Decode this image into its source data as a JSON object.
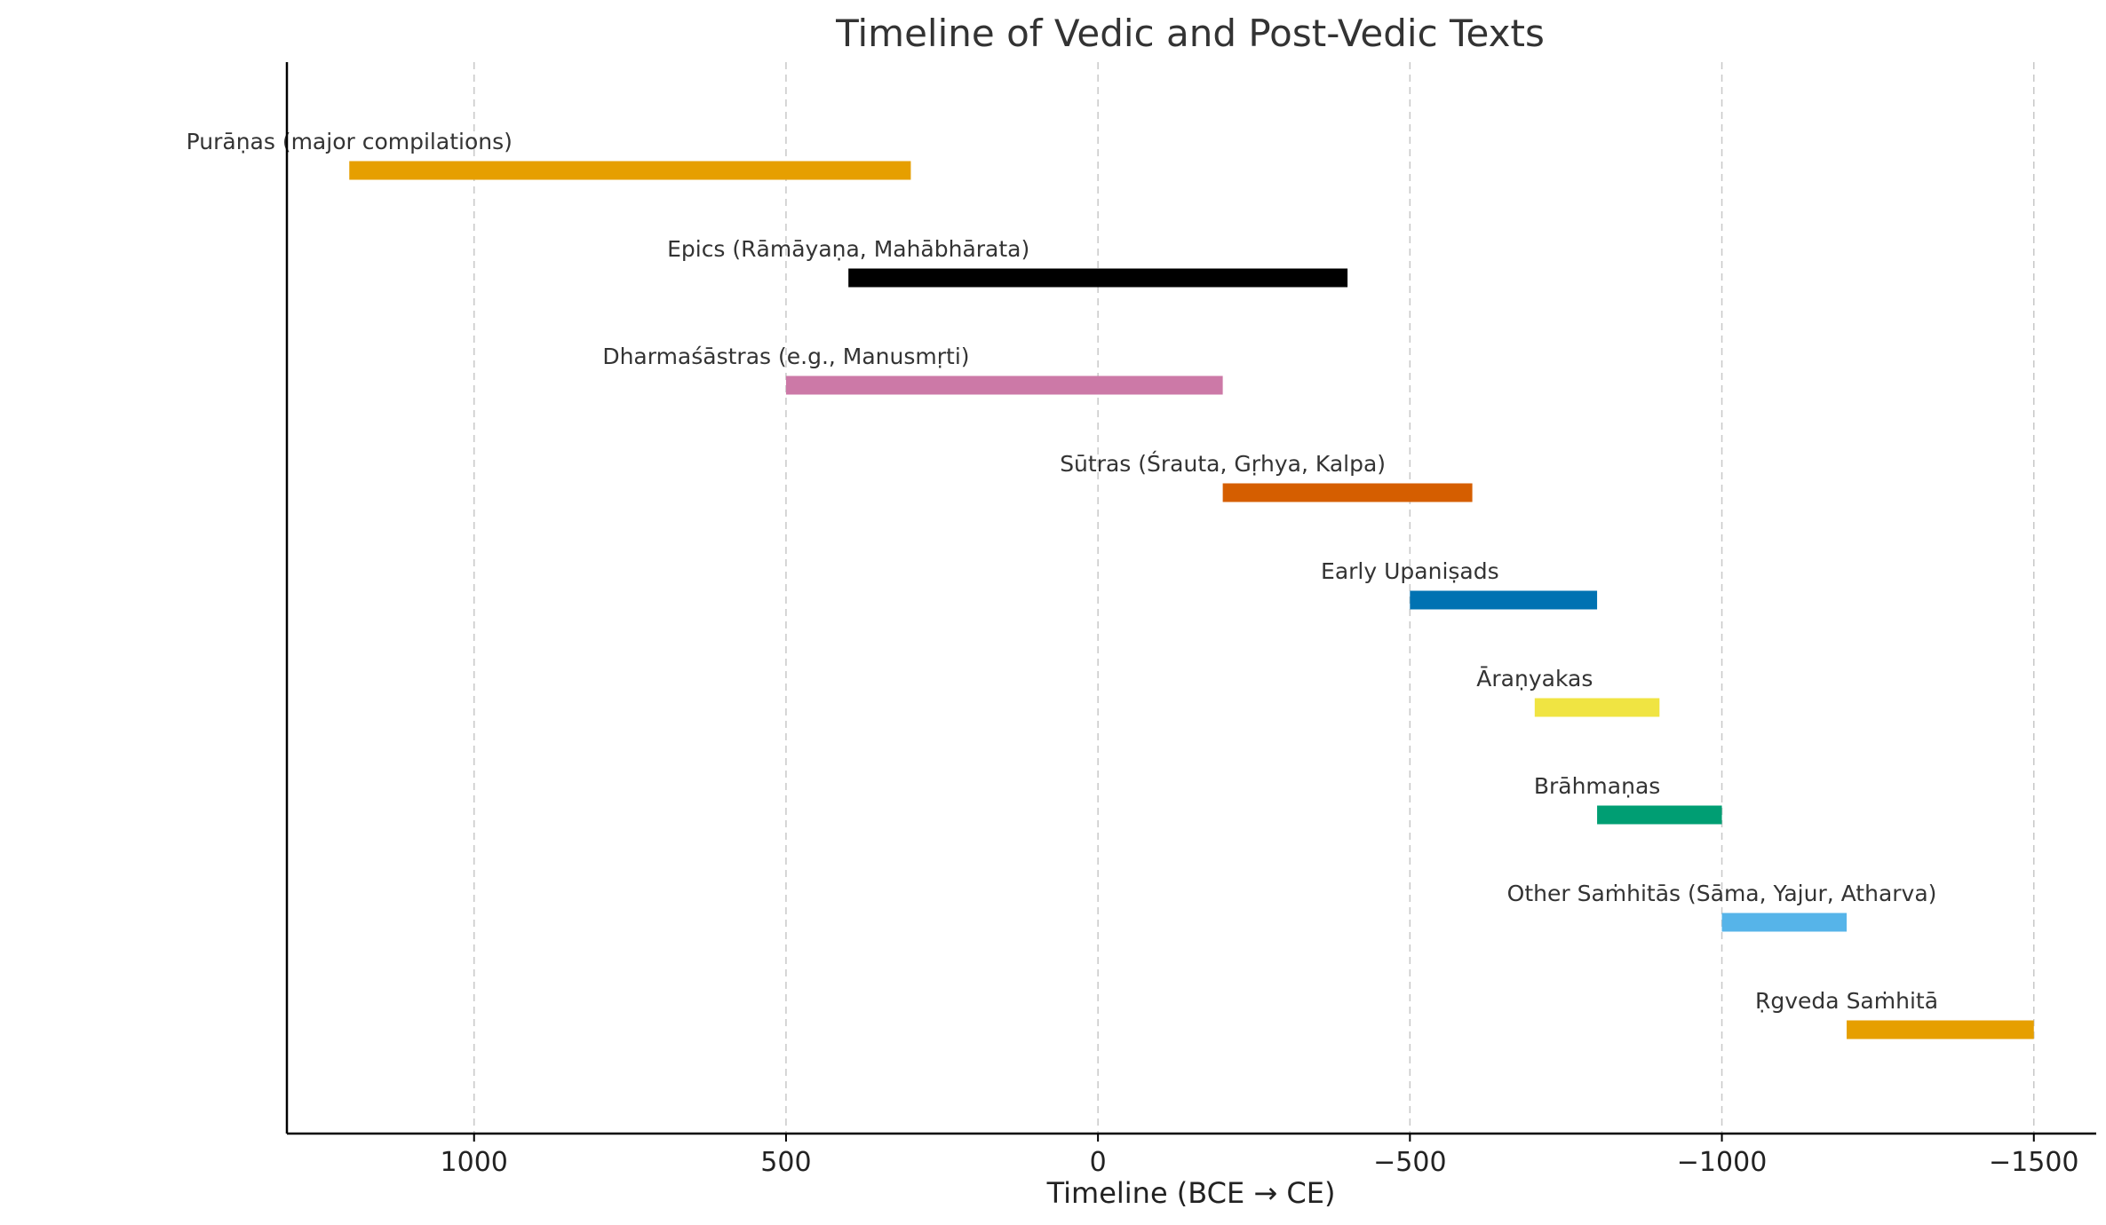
{
  "chart_data": {
    "type": "bar",
    "orientation": "horizontal-range",
    "title": "Timeline of Vedic and Post-Vedic Texts",
    "xlabel": "Timeline (BCE → CE)",
    "ylabel": "",
    "xlim": [
      1300,
      -1600
    ],
    "x_inverted": true,
    "grid": "x-dashed",
    "xticks": [
      1000,
      500,
      0,
      -500,
      -1000,
      -1500
    ],
    "xtick_labels": [
      "1000",
      "500",
      "0",
      "−500",
      "−1000",
      "−1500"
    ],
    "series": [
      {
        "label": "Purāṇas (major compilations)",
        "start": 1200,
        "end": 300,
        "color": "#E69F00"
      },
      {
        "label": "Epics (Rāmāyaṇa, Mahābhārata)",
        "start": 400,
        "end": -400,
        "color": "#000000"
      },
      {
        "label": "Dharmaśāstras (e.g., Manusmṛti)",
        "start": 500,
        "end": -200,
        "color": "#CC79A7"
      },
      {
        "label": "Sūtras (Śrauta, Gṛhya, Kalpa)",
        "start": -200,
        "end": -600,
        "color": "#D55E00"
      },
      {
        "label": "Early Upaniṣads",
        "start": -500,
        "end": -800,
        "color": "#0072B2"
      },
      {
        "label": "Āraṇyakas",
        "start": -700,
        "end": -900,
        "color": "#F0E442"
      },
      {
        "label": "Brāhmaṇas",
        "start": -800,
        "end": -1000,
        "color": "#009E73"
      },
      {
        "label": "Other Saṁhitās (Sāma, Yajur, Atharva)",
        "start": -1000,
        "end": -1200,
        "color": "#56B4E9"
      },
      {
        "label": "Ṛgveda Saṁhitā",
        "start": -1200,
        "end": -1500,
        "color": "#E69F00"
      }
    ]
  }
}
